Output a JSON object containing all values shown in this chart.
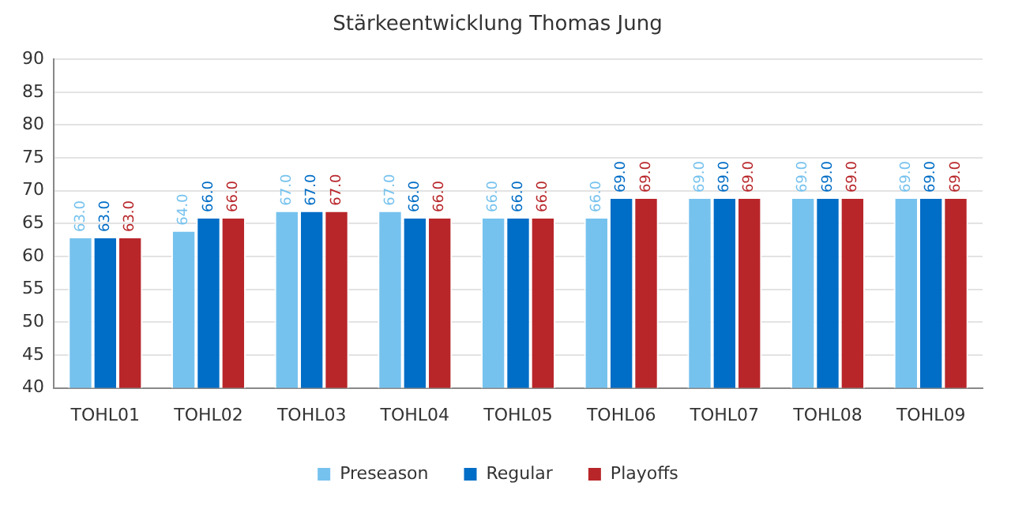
{
  "chart_data": {
    "type": "bar",
    "title": "Stärkeentwicklung Thomas Jung",
    "categories": [
      "TOHL01",
      "TOHL02",
      "TOHL03",
      "TOHL04",
      "TOHL05",
      "TOHL06",
      "TOHL07",
      "TOHL08",
      "TOHL09"
    ],
    "series": [
      {
        "name": "Preseason",
        "color": "#76c2ee",
        "values": [
          63,
          64,
          67,
          67,
          66,
          66,
          69,
          69,
          69
        ],
        "value_labels": [
          "63.0",
          "64.0",
          "67.0",
          "67.0",
          "66.0",
          "66.0",
          "69.0",
          "69.0",
          "69.0"
        ]
      },
      {
        "name": "Regular",
        "color": "#006dc6",
        "values": [
          63,
          66,
          67,
          66,
          66,
          69,
          69,
          69,
          69
        ],
        "value_labels": [
          "63.0",
          "66.0",
          "67.0",
          "66.0",
          "66.0",
          "69.0",
          "69.0",
          "69.0",
          "69.0"
        ]
      },
      {
        "name": "Playoffs",
        "color": "#b8262a",
        "values": [
          63,
          66,
          67,
          66,
          66,
          69,
          69,
          69,
          69
        ],
        "value_labels": [
          "63.0",
          "66.0",
          "67.0",
          "66.0",
          "66.0",
          "69.0",
          "69.0",
          "69.0",
          "69.0"
        ]
      }
    ],
    "ylim": [
      40,
      90
    ],
    "yticks": [
      40,
      45,
      50,
      55,
      60,
      65,
      70,
      75,
      80,
      85,
      90
    ],
    "grid": "y",
    "legend": "bottom"
  }
}
